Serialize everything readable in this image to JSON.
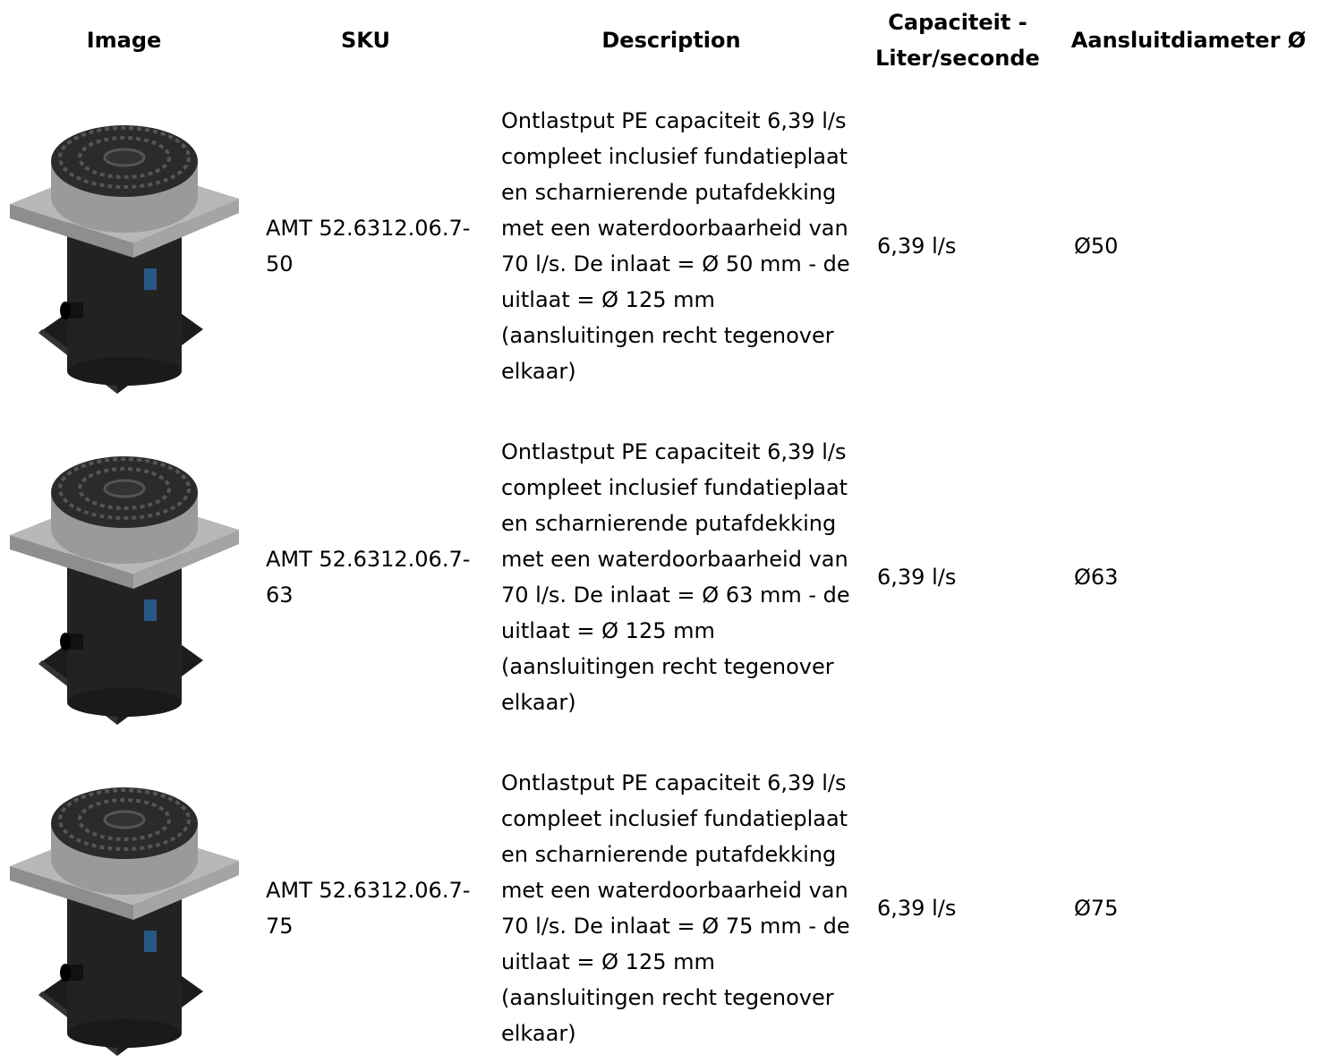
{
  "table": {
    "headers": [
      "Image",
      "SKU",
      "Description",
      "Capaciteit - Liter/seconde",
      "Aansluitdiameter Ø"
    ],
    "rows": [
      {
        "sku": "AMT 52.6312.06.7-50",
        "description": "Ontlastput PE capaciteit 6,39 l/s compleet inclusief fundatieplaat en scharnierende putafdekking met een waterdoorbaarheid van 70 l/s. De inlaat = Ø 50 mm - de uitlaat = Ø 125 mm (aansluitingen recht tegenover elkaar)",
        "capacity": "6,39 l/s",
        "diameter": "Ø50"
      },
      {
        "sku": "AMT 52.6312.06.7-63",
        "description": "Ontlastput PE capaciteit 6,39 l/s compleet inclusief fundatieplaat en scharnierende putafdekking met een waterdoorbaarheid van 70 l/s. De inlaat = Ø 63 mm - de uitlaat = Ø 125 mm (aansluitingen recht tegenover elkaar)",
        "capacity": "6,39 l/s",
        "diameter": "Ø63"
      },
      {
        "sku": "AMT 52.6312.06.7-75",
        "description": "Ontlastput PE capaciteit 6,39 l/s compleet inclusief fundatieplaat en scharnierende putafdekking met een waterdoorbaarheid van 70 l/s. De inlaat = Ø 75 mm - de uitlaat = Ø 125 mm (aansluitingen recht tegenover elkaar)",
        "capacity": "6,39 l/s",
        "diameter": "Ø75"
      }
    ]
  }
}
